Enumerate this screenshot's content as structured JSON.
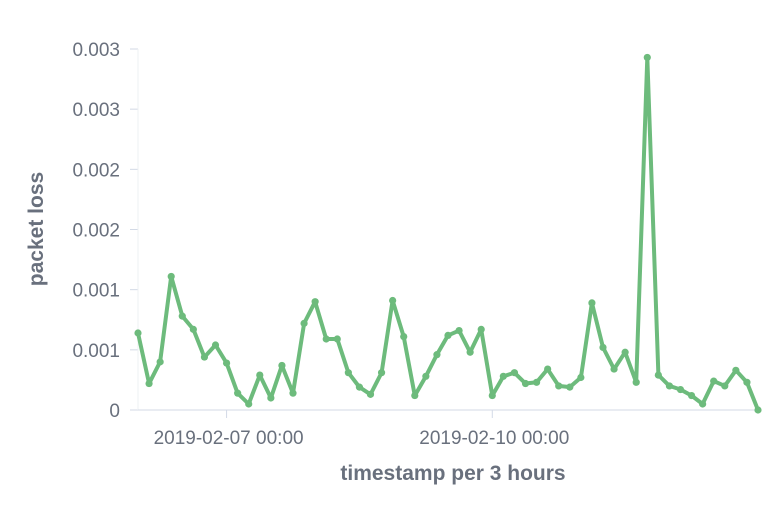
{
  "chart_data": {
    "type": "line",
    "xlabel": "timestamp per 3 hours",
    "ylabel": "packet loss",
    "x_tick_labels": [
      {
        "label": "2019-02-07 00:00",
        "index": 8
      },
      {
        "label": "2019-02-10 00:00",
        "index": 32
      }
    ],
    "y_ticks": [
      {
        "label": "0",
        "value": 0
      },
      {
        "label": "0.001",
        "value": 0.0005
      },
      {
        "label": "0.001",
        "value": 0.001
      },
      {
        "label": "0.002",
        "value": 0.0015
      },
      {
        "label": "0.002",
        "value": 0.002
      },
      {
        "label": "0.003",
        "value": 0.0025
      },
      {
        "label": "0.003",
        "value": 0.003
      }
    ],
    "ylim": [
      0,
      0.003
    ],
    "grid": false,
    "legend": "none",
    "color": "#6dbb7c",
    "series": [
      {
        "values": [
          0.00064,
          0.00022,
          0.0004,
          0.00111,
          0.00078,
          0.00067,
          0.00044,
          0.00054,
          0.00039,
          0.00014,
          5e-05,
          0.00029,
          0.0001,
          0.00037,
          0.00014,
          0.00072,
          0.0009,
          0.00059,
          0.00059,
          0.00031,
          0.00019,
          0.00013,
          0.00031,
          0.00091,
          0.00061,
          0.00012,
          0.00028,
          0.00046,
          0.00062,
          0.00066,
          0.00048,
          0.00067,
          0.00012,
          0.00028,
          0.00031,
          0.00022,
          0.00023,
          0.00034,
          0.0002,
          0.00019,
          0.00027,
          0.00089,
          0.00052,
          0.00034,
          0.00048,
          0.00023,
          0.00293,
          0.00029,
          0.0002,
          0.00017,
          0.00012,
          5e-05,
          0.00024,
          0.0002,
          0.00033,
          0.00023,
          0.0
        ]
      }
    ]
  }
}
